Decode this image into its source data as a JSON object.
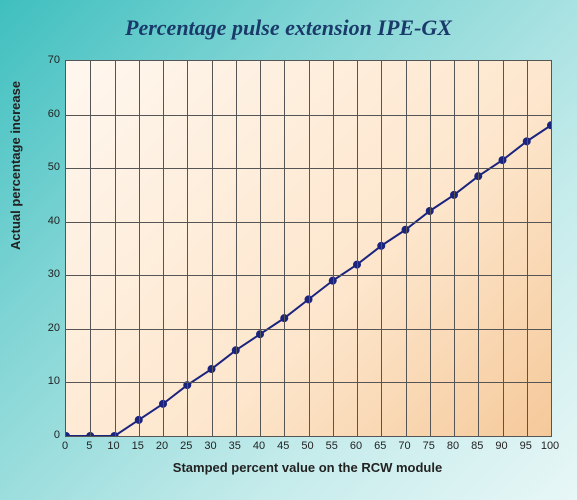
{
  "chart": {
    "type": "line",
    "title": "Percentage pulse extension IPE-GX",
    "title_fontsize": 22,
    "title_color": "#1a3a6a",
    "title_style": "italic bold",
    "background_gradient_page": [
      "#3fbfbf",
      "#e8f7f7"
    ],
    "background_gradient_plot": [
      "#fff7ef",
      "#f5c99a"
    ],
    "grid_color": "#555555",
    "border_color": "#555555",
    "xlabel": "Stamped percent value on the RCW module",
    "ylabel": "Actual percentage increase",
    "label_fontsize": 13,
    "label_color": "#222222",
    "tick_fontsize": 11,
    "xlim": [
      0,
      100
    ],
    "ylim": [
      0,
      70
    ],
    "xtick_step": 5,
    "ytick_step": 10,
    "x": [
      0,
      5,
      10,
      15,
      20,
      25,
      30,
      35,
      40,
      45,
      50,
      55,
      60,
      65,
      70,
      75,
      80,
      85,
      90,
      95,
      100
    ],
    "y": [
      0,
      0,
      0,
      3,
      6,
      9.5,
      12.5,
      16,
      19,
      22,
      25.5,
      29,
      32,
      35.5,
      38.5,
      42,
      45,
      48.5,
      51.5,
      55,
      58
    ],
    "line_color": "#1a237e",
    "line_width": 2,
    "marker_color": "#1a237e",
    "marker_style": "circle",
    "marker_size": 4
  }
}
